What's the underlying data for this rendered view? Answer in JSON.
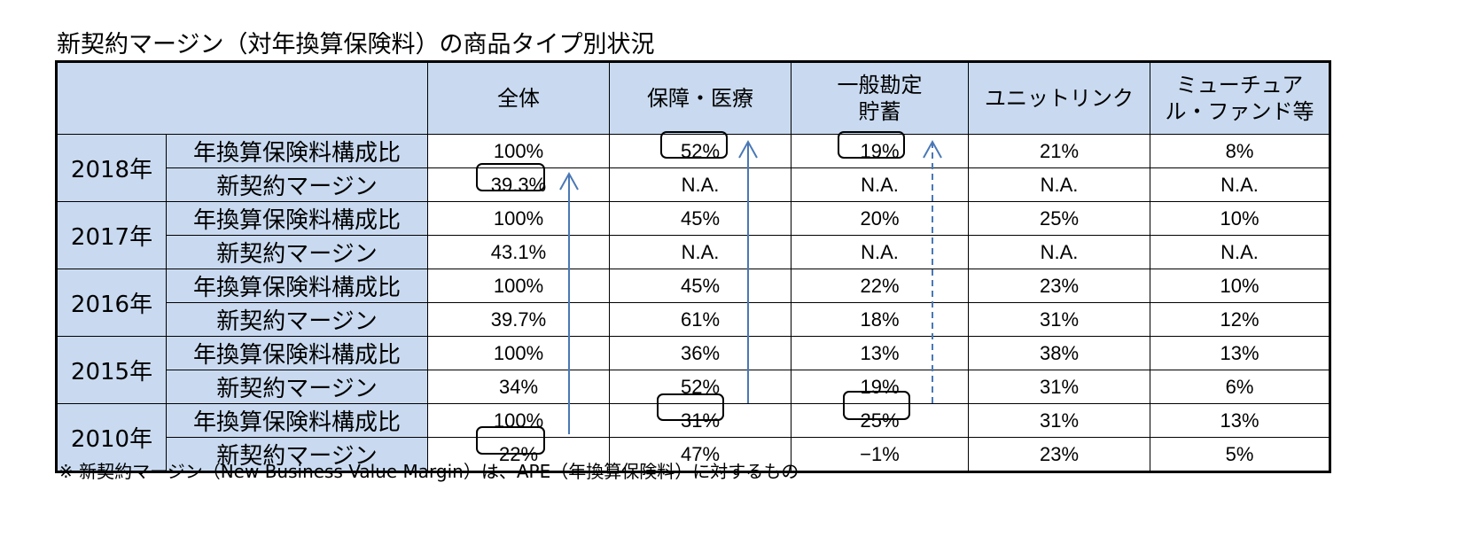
{
  "title": "新契約マージン（対年換算保険料）の商品タイプ別状況",
  "header": {
    "columns": [
      "全体",
      "保障・医療",
      "一般勘定\n貯蓄",
      "ユニットリンク",
      "ミューチュア\nル・ファンド等"
    ]
  },
  "rows": [
    {
      "year": "2018年",
      "ratio_label": "年換算保険料構成比",
      "ratio": [
        "100%",
        "52%",
        "19%",
        "21%",
        "8%"
      ],
      "margin_label": "新契約マージン",
      "margin": [
        "39.3%",
        "N.A.",
        "N.A.",
        "N.A.",
        "N.A."
      ]
    },
    {
      "year": "2017年",
      "ratio_label": "年換算保険料構成比",
      "ratio": [
        "100%",
        "45%",
        "20%",
        "25%",
        "10%"
      ],
      "margin_label": "新契約マージン",
      "margin": [
        "43.1%",
        "N.A.",
        "N.A.",
        "N.A.",
        "N.A."
      ]
    },
    {
      "year": "2016年",
      "ratio_label": "年換算保険料構成比",
      "ratio": [
        "100%",
        "45%",
        "22%",
        "23%",
        "10%"
      ],
      "margin_label": "新契約マージン",
      "margin": [
        "39.7%",
        "61%",
        "18%",
        "31%",
        "12%"
      ]
    },
    {
      "year": "2015年",
      "ratio_label": "年換算保険料構成比",
      "ratio": [
        "100%",
        "36%",
        "13%",
        "38%",
        "13%"
      ],
      "margin_label": "新契約マージン",
      "margin": [
        "34%",
        "52%",
        "19%",
        "31%",
        "6%"
      ]
    },
    {
      "year": "2010年",
      "ratio_label": "年換算保険料構成比",
      "ratio": [
        "100%",
        "31%",
        "25%",
        "31%",
        "13%"
      ],
      "margin_label": "新契約マージン",
      "margin": [
        "22%",
        "47%",
        "−1%",
        "23%",
        "5%"
      ]
    }
  ],
  "footnote": "※ 新契約マージン（New Business Value Margin）は、APE（年換算保険料）に対するもの",
  "colors": {
    "header_bg": "#c9daf0",
    "arrow": "#4a78b5",
    "border": "#000000"
  }
}
